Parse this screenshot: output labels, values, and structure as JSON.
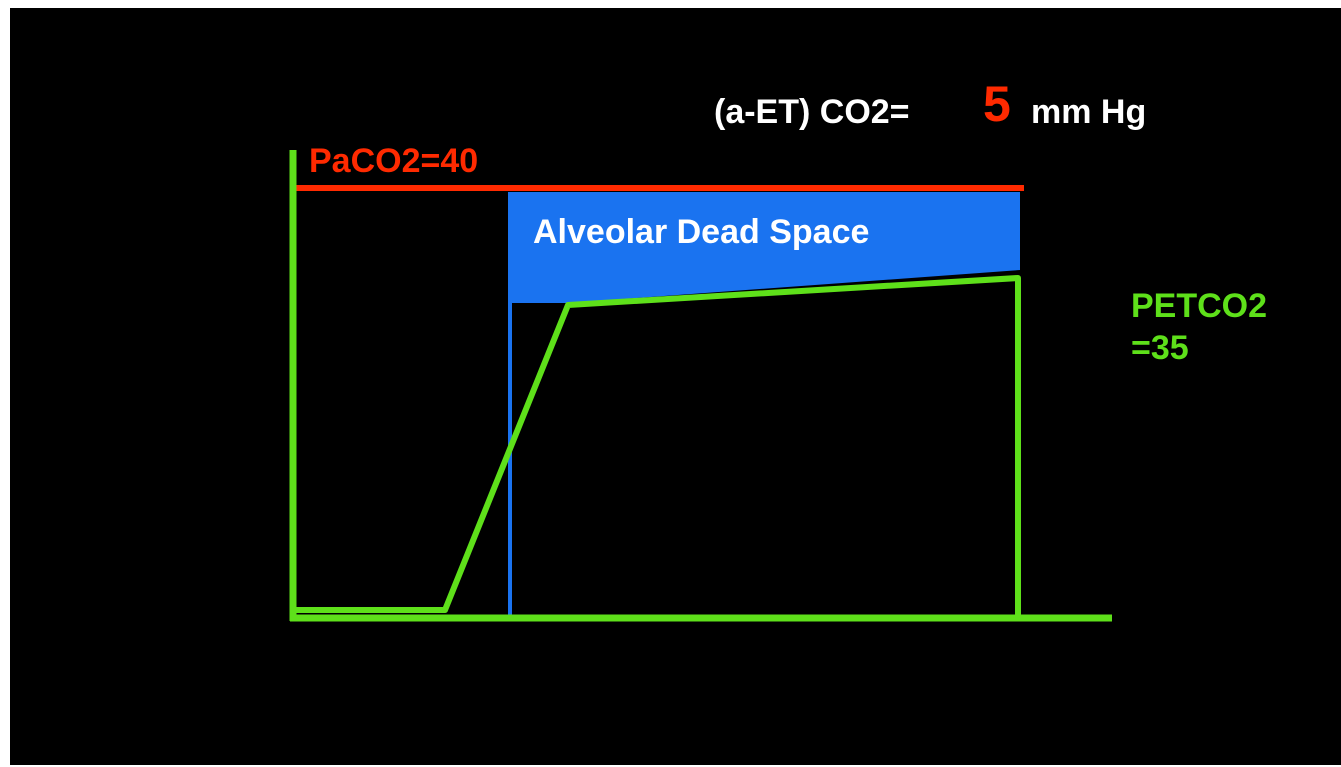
{
  "header": {
    "label": "(a-ET) CO2=",
    "value": "5",
    "unit": "mm Hg"
  },
  "diagram": {
    "paco2": "PaCO2=40",
    "region": "Alveolar Dead Space",
    "petco2_line1": "PETCO2",
    "petco2_line2": "=35"
  }
}
